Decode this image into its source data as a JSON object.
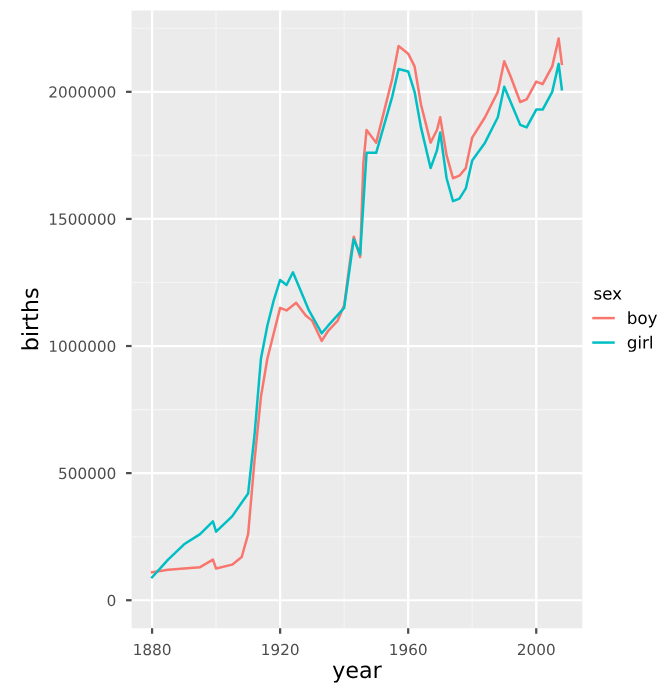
{
  "chart_data": {
    "type": "line",
    "xlabel": "year",
    "ylabel": "births",
    "legend_title": "sex",
    "legend": "right",
    "grid": true,
    "xlim": [
      1873.6,
      2014.4
    ],
    "ylim": [
      -110000,
      2320000
    ],
    "xticks": [
      1880,
      1920,
      1960,
      2000
    ],
    "yticks": [
      0,
      500000,
      1000000,
      1500000,
      2000000
    ],
    "series": [
      {
        "name": "boy",
        "color": "#f8766d",
        "x": [
          1880,
          1885,
          1890,
          1895,
          1899,
          1900,
          1905,
          1908,
          1910,
          1912,
          1914,
          1916,
          1918,
          1920,
          1922,
          1925,
          1928,
          1930,
          1933,
          1935,
          1938,
          1940,
          1942,
          1943,
          1945,
          1946,
          1947,
          1950,
          1955,
          1957,
          1960,
          1962,
          1964,
          1967,
          1969,
          1970,
          1972,
          1974,
          1976,
          1978,
          1980,
          1984,
          1988,
          1990,
          1992,
          1995,
          1997,
          2000,
          2002,
          2005,
          2007,
          2008
        ],
        "values": [
          110000,
          120000,
          125000,
          130000,
          160000,
          125000,
          140000,
          170000,
          260000,
          550000,
          800000,
          950000,
          1050000,
          1150000,
          1140000,
          1170000,
          1120000,
          1100000,
          1020000,
          1060000,
          1100000,
          1160000,
          1350000,
          1430000,
          1350000,
          1720000,
          1850000,
          1800000,
          2050000,
          2180000,
          2150000,
          2100000,
          1950000,
          1800000,
          1850000,
          1900000,
          1750000,
          1660000,
          1670000,
          1700000,
          1820000,
          1900000,
          2000000,
          2120000,
          2060000,
          1960000,
          1970000,
          2040000,
          2030000,
          2100000,
          2210000,
          2110000
        ]
      },
      {
        "name": "girl",
        "color": "#00bfc4",
        "x": [
          1880,
          1885,
          1890,
          1895,
          1899,
          1900,
          1905,
          1910,
          1912,
          1914,
          1916,
          1918,
          1920,
          1922,
          1924,
          1926,
          1929,
          1933,
          1935,
          1940,
          1943,
          1945,
          1947,
          1950,
          1955,
          1957,
          1960,
          1962,
          1964,
          1967,
          1969,
          1970,
          1972,
          1974,
          1976,
          1978,
          1980,
          1984,
          1988,
          1990,
          1992,
          1995,
          1997,
          2000,
          2002,
          2005,
          2007,
          2008
        ],
        "values": [
          90000,
          160000,
          220000,
          260000,
          310000,
          270000,
          330000,
          420000,
          650000,
          950000,
          1080000,
          1180000,
          1260000,
          1240000,
          1290000,
          1230000,
          1140000,
          1050000,
          1080000,
          1150000,
          1420000,
          1360000,
          1760000,
          1760000,
          1980000,
          2090000,
          2080000,
          2000000,
          1860000,
          1700000,
          1770000,
          1840000,
          1660000,
          1570000,
          1580000,
          1620000,
          1730000,
          1800000,
          1900000,
          2020000,
          1960000,
          1870000,
          1860000,
          1930000,
          1930000,
          2000000,
          2110000,
          2010000
        ]
      }
    ]
  }
}
